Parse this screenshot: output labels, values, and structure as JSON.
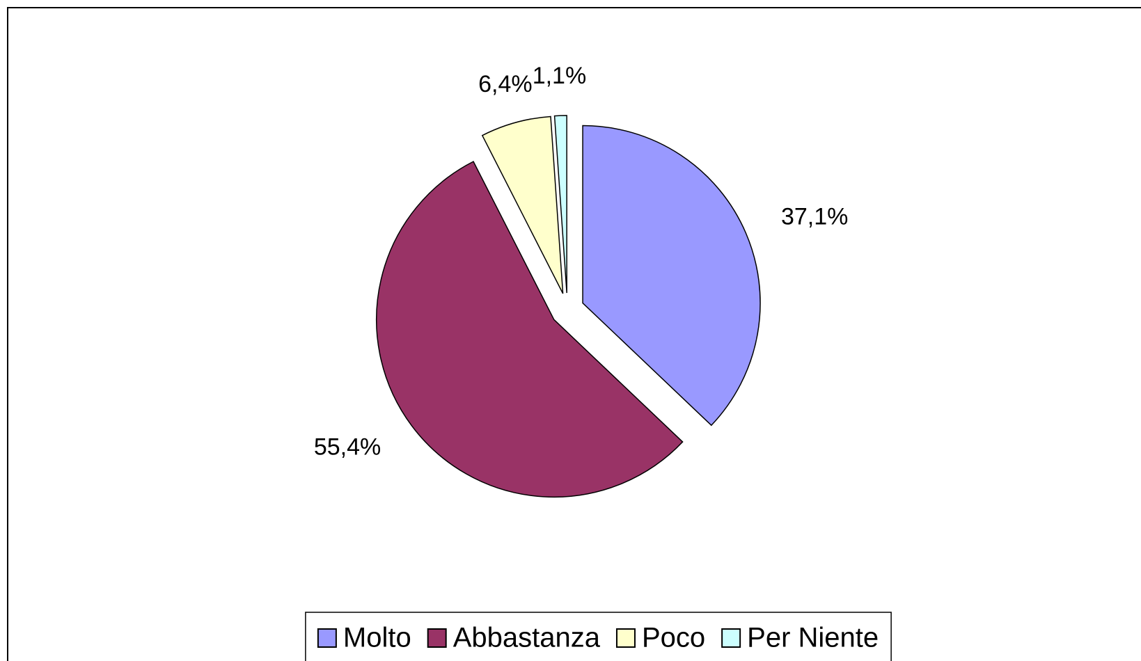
{
  "chart_data": {
    "type": "pie",
    "categories": [
      "Molto",
      "Abbastanza",
      "Poco",
      "Per Niente"
    ],
    "values": [
      37.1,
      55.4,
      6.4,
      1.1
    ],
    "value_labels": [
      "37,1%",
      "55,4%",
      "6,4%",
      "1,1%"
    ],
    "colors": [
      "#9999ff",
      "#993366",
      "#ffffcc",
      "#ccffff"
    ],
    "legend": "bottom"
  }
}
